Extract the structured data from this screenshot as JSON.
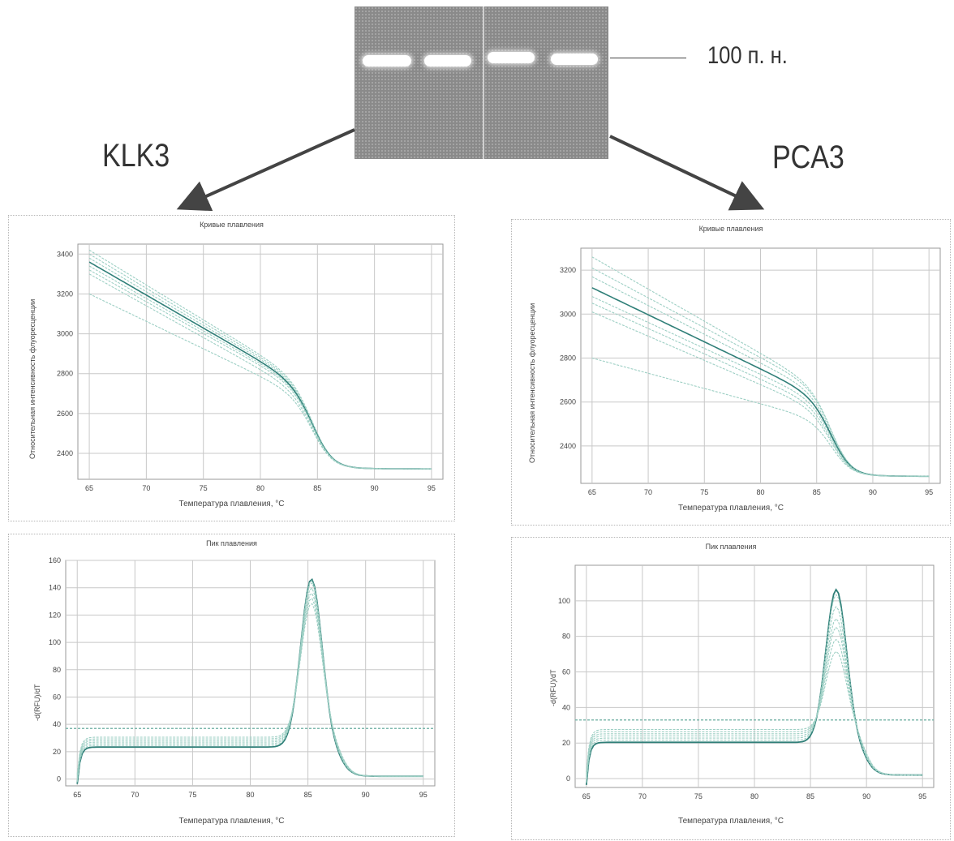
{
  "gel": {
    "marker_label": "100 п. н."
  },
  "genes": {
    "left": "KLK3",
    "right": "PCA3"
  },
  "chart_data": [
    {
      "type": "line",
      "title": "Кривые плавления",
      "xlabel": "Температура плавления, °C",
      "ylabel": "Относительная интенсивность флуоресценции",
      "xlim": [
        64,
        96
      ],
      "ylim": [
        2270,
        3450
      ],
      "xticks": [
        65,
        70,
        75,
        80,
        85,
        90,
        95
      ],
      "yticks": [
        2400,
        2600,
        2800,
        3000,
        3200,
        3400
      ],
      "tick_labels_x": [
        "65",
        "70",
        "75",
        "80",
        "85",
        "90",
        "95"
      ],
      "tick_labels_y": [
        "2400",
        "2600",
        "2800",
        "3000",
        "3200",
        "3400"
      ],
      "grid": true,
      "curve_model": {
        "start": [
          3420,
          3400,
          3380,
          3360,
          3340,
          3320,
          3300,
          3200
        ],
        "shoulder": [
          2860,
          2850,
          2840,
          2830,
          2820,
          2810,
          2790,
          2760
        ],
        "end": 2330,
        "melt_temp": 84.8,
        "shoulder_temp": 81.0,
        "end_temp": 95
      }
    },
    {
      "type": "line",
      "title": "Пик плавления",
      "xlabel": "Температура плавления, °C",
      "ylabel": "-d(RFU)/dT",
      "xlim": [
        64,
        96
      ],
      "ylim": [
        -5,
        160
      ],
      "xticks": [
        65,
        70,
        75,
        80,
        85,
        90,
        95
      ],
      "yticks": [
        0,
        20,
        40,
        60,
        80,
        100,
        120,
        140,
        160
      ],
      "tick_labels_x": [
        "65",
        "70",
        "75",
        "80",
        "85",
        "90",
        "95"
      ],
      "tick_labels_y": [
        "0",
        "20",
        "40",
        "60",
        "80",
        "100",
        "120",
        "140",
        "160"
      ],
      "threshold": 37,
      "grid": true,
      "curve_model": {
        "baseline": 27,
        "peak_center": 85.3,
        "peak_heights": [
          150,
          148,
          145,
          140,
          135,
          130,
          125
        ],
        "peak_width": 1.3,
        "tail_end": 2
      }
    },
    {
      "type": "line",
      "title": "Кривые плавления",
      "xlabel": "Температура плавления, °C",
      "ylabel": "Относительная интенсивность флуоресценции",
      "xlim": [
        64,
        96
      ],
      "ylim": [
        2230,
        3300
      ],
      "xticks": [
        65,
        70,
        75,
        80,
        85,
        90,
        95
      ],
      "yticks": [
        2400,
        2600,
        2800,
        3000,
        3200
      ],
      "tick_labels_x": [
        "65",
        "70",
        "75",
        "80",
        "85",
        "90",
        "95"
      ],
      "tick_labels_y": [
        "2400",
        "2600",
        "2800",
        "3000",
        "3200"
      ],
      "grid": true,
      "curve_model": {
        "start": [
          3260,
          3210,
          3170,
          3120,
          3080,
          3050,
          3010,
          2800
        ],
        "shoulder": [
          2690,
          2680,
          2660,
          2640,
          2620,
          2600,
          2580,
          2530
        ],
        "end": 2270,
        "melt_temp": 86.5,
        "shoulder_temp": 84.5,
        "end_temp": 95
      }
    },
    {
      "type": "line",
      "title": "Пик плавления",
      "xlabel": "Температура плавления, °C",
      "ylabel": "-d(RFU)/dT",
      "xlim": [
        64,
        96
      ],
      "ylim": [
        -5,
        120
      ],
      "xticks": [
        65,
        70,
        75,
        80,
        85,
        90,
        95
      ],
      "yticks": [
        0,
        20,
        40,
        60,
        80,
        100
      ],
      "tick_labels_x": [
        "65",
        "70",
        "75",
        "80",
        "85",
        "90",
        "95"
      ],
      "tick_labels_y": [
        "0",
        "20",
        "40",
        "60",
        "80",
        "100"
      ],
      "threshold": 33,
      "grid": true,
      "curve_model": {
        "baseline": 24,
        "peak_center": 87.3,
        "peak_heights": [
          110,
          106,
          98,
          90,
          84,
          76,
          68
        ],
        "peak_width": 1.3,
        "tail_end": 2
      }
    }
  ],
  "colors": {
    "curve_main": "#2f7f78",
    "curve_light": "#9dcfc4",
    "grid": "#c8c8c8",
    "threshold": "#7fb8ad"
  }
}
